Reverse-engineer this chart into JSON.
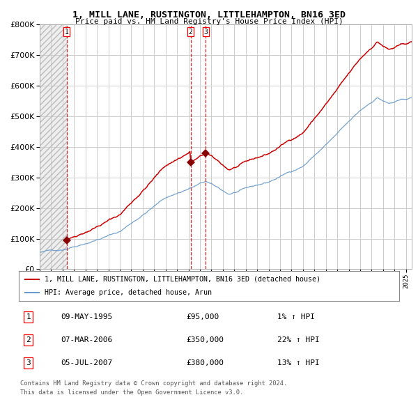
{
  "title": "1, MILL LANE, RUSTINGTON, LITTLEHAMPTON, BN16 3ED",
  "subtitle": "Price paid vs. HM Land Registry's House Price Index (HPI)",
  "transactions": [
    {
      "num": 1,
      "date": "09-MAY-1995",
      "year": 1995.36,
      "price": 95000,
      "pct": "1%",
      "direction": "↑"
    },
    {
      "num": 2,
      "date": "07-MAR-2006",
      "year": 2006.18,
      "price": 350000,
      "pct": "22%",
      "direction": "↑"
    },
    {
      "num": 3,
      "date": "05-JUL-2007",
      "year": 2007.51,
      "price": 380000,
      "pct": "13%",
      "direction": "↑"
    }
  ],
  "legend_house": "1, MILL LANE, RUSTINGTON, LITTLEHAMPTON, BN16 3ED (detached house)",
  "legend_hpi": "HPI: Average price, detached house, Arun",
  "footnote1": "Contains HM Land Registry data © Crown copyright and database right 2024.",
  "footnote2": "This data is licensed under the Open Government Licence v3.0.",
  "ylim": [
    0,
    800000
  ],
  "yticks": [
    0,
    100000,
    200000,
    300000,
    400000,
    500000,
    600000,
    700000,
    800000
  ],
  "xlim_start": 1993.0,
  "xlim_end": 2025.5,
  "house_color": "#cc0000",
  "hpi_color": "#6699cc",
  "vline_color": "#cc0000",
  "grid_color": "#cccccc",
  "background_color": "#ffffff",
  "marker_color": "#880000",
  "hatch_color": "#cccccc"
}
